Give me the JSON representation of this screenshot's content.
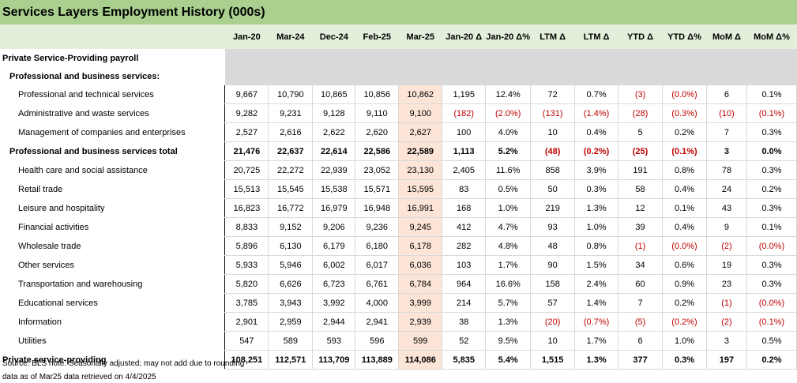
{
  "title": "Services Layers Employment History (000s)",
  "columns": [
    "Jan-20",
    "Mar-24",
    "Dec-24",
    "Feb-25",
    "Mar-25",
    "Jan-20 Δ",
    "Jan-20 Δ%",
    "LTM Δ",
    "LTM Δ",
    "YTD Δ",
    "YTD Δ%",
    "MoM Δ",
    "MoM Δ%"
  ],
  "section_rows": [
    {
      "label": "Private Service-Providing payroll"
    },
    {
      "label": "Professional and business services:"
    }
  ],
  "rows": [
    {
      "label": "Professional and technical services",
      "values": [
        "9,667",
        "10,790",
        "10,865",
        "10,856",
        "10,862",
        "1,195",
        "12.4%",
        "72",
        "0.7%",
        "(3)",
        "(0.0%)",
        "6",
        "0.1%"
      ]
    },
    {
      "label": "Administrative and waste services",
      "values": [
        "9,282",
        "9,231",
        "9,128",
        "9,110",
        "9,100",
        "(182)",
        "(2.0%)",
        "(131)",
        "(1.4%)",
        "(28)",
        "(0.3%)",
        "(10)",
        "(0.1%)"
      ]
    },
    {
      "label": "Management of companies and enterprises",
      "values": [
        "2,527",
        "2,616",
        "2,622",
        "2,620",
        "2,627",
        "100",
        "4.0%",
        "10",
        "0.4%",
        "5",
        "0.2%",
        "7",
        "0.3%"
      ]
    },
    {
      "label": "Professional and business services total",
      "values": [
        "21,476",
        "22,637",
        "22,614",
        "22,586",
        "22,589",
        "1,113",
        "5.2%",
        "(48)",
        "(0.2%)",
        "(25)",
        "(0.1%)",
        "3",
        "0.0%"
      ]
    },
    {
      "label": "Health care and social assistance",
      "values": [
        "20,725",
        "22,272",
        "22,939",
        "23,052",
        "23,130",
        "2,405",
        "11.6%",
        "858",
        "3.9%",
        "191",
        "0.8%",
        "78",
        "0.3%"
      ]
    },
    {
      "label": "Retail trade",
      "values": [
        "15,513",
        "15,545",
        "15,538",
        "15,571",
        "15,595",
        "83",
        "0.5%",
        "50",
        "0.3%",
        "58",
        "0.4%",
        "24",
        "0.2%"
      ]
    },
    {
      "label": "Leisure and hospitality",
      "values": [
        "16,823",
        "16,772",
        "16,979",
        "16,948",
        "16,991",
        "168",
        "1.0%",
        "219",
        "1.3%",
        "12",
        "0.1%",
        "43",
        "0.3%"
      ]
    },
    {
      "label": "Financial activities",
      "values": [
        "8,833",
        "9,152",
        "9,206",
        "9,236",
        "9,245",
        "412",
        "4.7%",
        "93",
        "1.0%",
        "39",
        "0.4%",
        "9",
        "0.1%"
      ]
    },
    {
      "label": "Wholesale trade",
      "values": [
        "5,896",
        "6,130",
        "6,179",
        "6,180",
        "6,178",
        "282",
        "4.8%",
        "48",
        "0.8%",
        "(1)",
        "(0.0%)",
        "(2)",
        "(0.0%)"
      ]
    },
    {
      "label": "Other services",
      "values": [
        "5,933",
        "5,946",
        "6,002",
        "6,017",
        "6,036",
        "103",
        "1.7%",
        "90",
        "1.5%",
        "34",
        "0.6%",
        "19",
        "0.3%"
      ]
    },
    {
      "label": "Transportation and warehousing",
      "values": [
        "5,820",
        "6,626",
        "6,723",
        "6,761",
        "6,784",
        "964",
        "16.6%",
        "158",
        "2.4%",
        "60",
        "0.9%",
        "23",
        "0.3%"
      ]
    },
    {
      "label": "Educational services",
      "values": [
        "3,785",
        "3,943",
        "3,992",
        "4,000",
        "3,999",
        "214",
        "5.7%",
        "57",
        "1.4%",
        "7",
        "0.2%",
        "(1)",
        "(0.0%)"
      ]
    },
    {
      "label": "Information",
      "values": [
        "2,901",
        "2,959",
        "2,944",
        "2,941",
        "2,939",
        "38",
        "1.3%",
        "(20)",
        "(0.7%)",
        "(5)",
        "(0.2%)",
        "(2)",
        "(0.1%)"
      ]
    },
    {
      "label": "Utilities",
      "values": [
        "547",
        "589",
        "593",
        "596",
        "599",
        "52",
        "9.5%",
        "10",
        "1.7%",
        "6",
        "1.0%",
        "3",
        "0.5%"
      ]
    },
    {
      "label": "Private service-providing",
      "values": [
        "108,251",
        "112,571",
        "113,709",
        "113,889",
        "114,086",
        "5,835",
        "5.4%",
        "1,515",
        "1.3%",
        "377",
        "0.3%",
        "197",
        "0.2%"
      ]
    }
  ],
  "footer": {
    "line1": "Source: BLS   note: Seasonally adjusted; may not add due to rounding",
    "line2": "data as of Mar25   data retrieved on 4/4/2025"
  },
  "colors": {
    "title_bg": "#a9d08e",
    "header_bg": "#e2efda",
    "highlight": "#fce4d6",
    "negative": "#c00000",
    "grey_band": "#d9d9d9"
  }
}
